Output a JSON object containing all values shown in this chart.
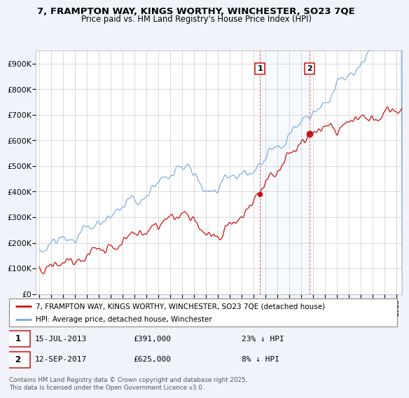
{
  "title_line1": "7, FRAMPTON WAY, KINGS WORTHY, WINCHESTER, SO23 7QE",
  "title_line2": "Price paid vs. HM Land Registry's House Price Index (HPI)",
  "ylim": [
    0,
    950000
  ],
  "yticks": [
    0,
    100000,
    200000,
    300000,
    400000,
    500000,
    600000,
    700000,
    800000,
    900000
  ],
  "ytick_labels": [
    "£0",
    "£100K",
    "£200K",
    "£300K",
    "£400K",
    "£500K",
    "£600K",
    "£700K",
    "£800K",
    "£900K"
  ],
  "hpi_color": "#7aaadd",
  "price_color": "#cc1111",
  "marker1_date": 2013.54,
  "marker1_price": 391000,
  "marker2_date": 2017.71,
  "marker2_price": 625000,
  "legend_line1": "7, FRAMPTON WAY, KINGS WORTHY, WINCHESTER, SO23 7QE (detached house)",
  "legend_line2": "HPI: Average price, detached house, Winchester",
  "footer": "Contains HM Land Registry data © Crown copyright and database right 2025.\nThis data is licensed under the Open Government Licence v3.0.",
  "background_color": "#f0f4fa",
  "plot_bg_color": "#ffffff",
  "grid_color": "#cccccc",
  "shaded_color": "#ddeeff",
  "shaded_region_start": 2013.54,
  "shaded_region_end": 2017.71,
  "xlim_left": 1994.7,
  "xlim_right": 2025.5,
  "fig_width": 6.0,
  "fig_height": 5.6,
  "dpi": 100
}
